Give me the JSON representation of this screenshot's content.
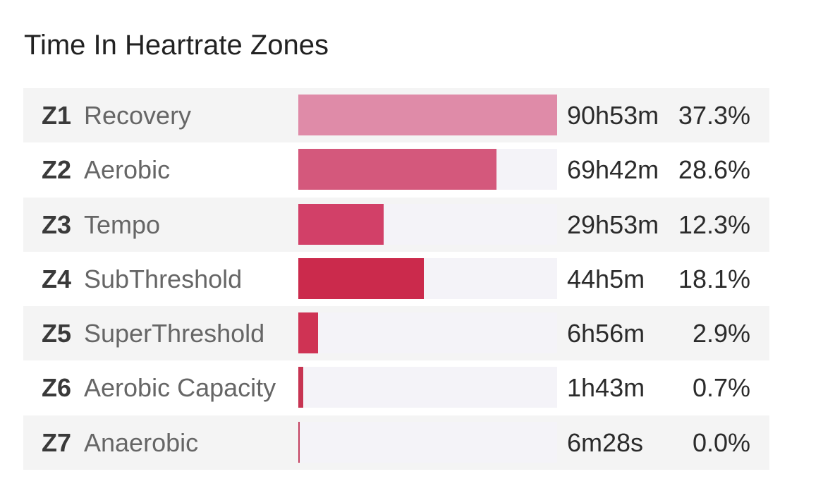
{
  "title": "Time In Heartrate Zones",
  "chart_data": {
    "type": "bar",
    "orientation": "horizontal",
    "title": "Time In Heartrate Zones",
    "colors": [
      "#df8ba8",
      "#d4587c",
      "#d24068",
      "#cb2a4c",
      "#cf3354",
      "#c73452",
      "#c44060"
    ],
    "max_value_minutes": 5453,
    "zones": [
      {
        "code": "Z1",
        "name": "Recovery",
        "duration": "90h53m",
        "minutes": 5453,
        "percent": "37.3%"
      },
      {
        "code": "Z2",
        "name": "Aerobic",
        "duration": "69h42m",
        "minutes": 4182,
        "percent": "28.6%"
      },
      {
        "code": "Z3",
        "name": "Tempo",
        "duration": "29h53m",
        "minutes": 1793,
        "percent": "12.3%"
      },
      {
        "code": "Z4",
        "name": "SubThreshold",
        "duration": "44h5m",
        "minutes": 2645,
        "percent": "18.1%"
      },
      {
        "code": "Z5",
        "name": "SuperThreshold",
        "duration": "6h56m",
        "minutes": 416,
        "percent": "2.9%"
      },
      {
        "code": "Z6",
        "name": "Aerobic Capacity",
        "duration": "1h43m",
        "minutes": 103,
        "percent": "0.7%"
      },
      {
        "code": "Z7",
        "name": "Anaerobic",
        "duration": "6m28s",
        "minutes": 6.47,
        "percent": "0.0%"
      }
    ]
  }
}
